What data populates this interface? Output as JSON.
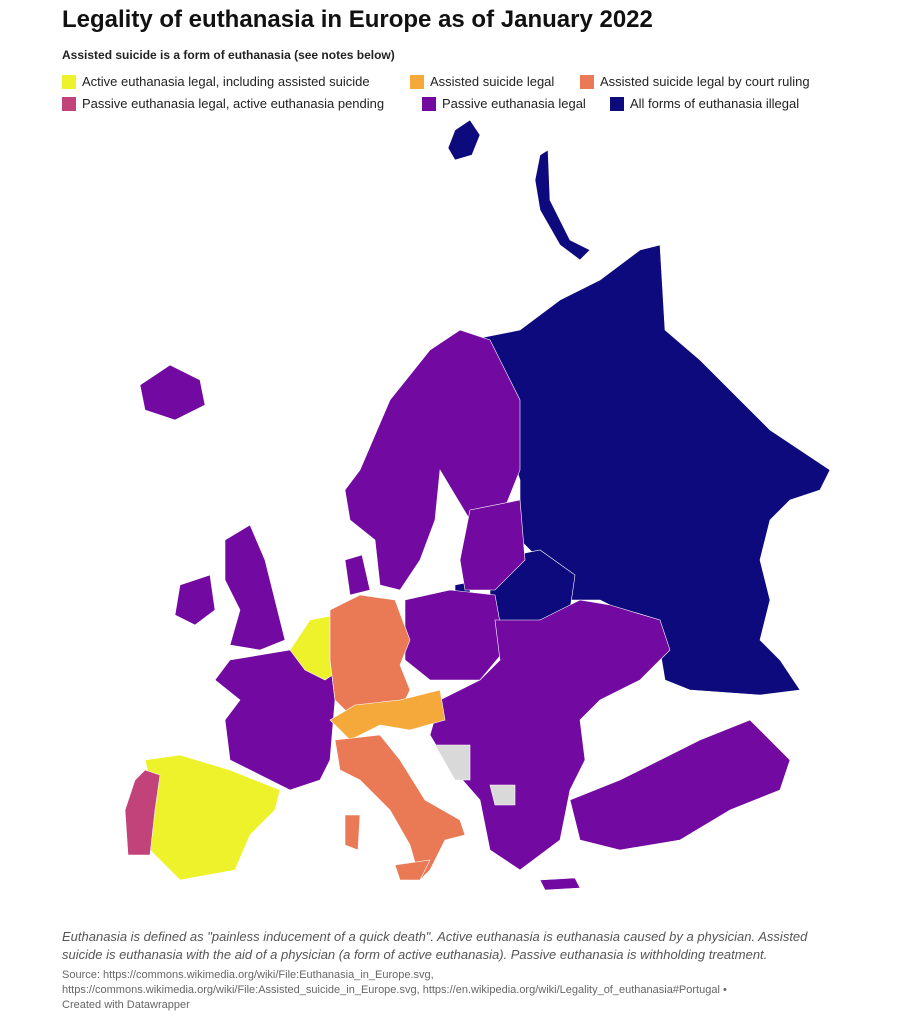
{
  "header": {
    "title": "Legality of euthanasia in Europe as of January 2022",
    "subtitle": "Assisted suicide is a form of euthanasia (see notes below)"
  },
  "legend": [
    {
      "label": "Active euthanasia legal, including assisted suicide",
      "color": "#eef22a"
    },
    {
      "label": "Assisted suicide legal",
      "color": "#f6a93b"
    },
    {
      "label": "Assisted suicide legal by court ruling",
      "color": "#ea7a56"
    },
    {
      "label": "Passive euthanasia legal, active euthanasia pending",
      "color": "#c2437a"
    },
    {
      "label": "Passive euthanasia legal",
      "color": "#7209a0"
    },
    {
      "label": "All forms of euthanasia illegal",
      "color": "#0d0a7e"
    }
  ],
  "notes": "Euthanasia is defined as \"painless inducement of a quick death\". Active euthanasia is euthanasia caused by a physician. Assisted suicide is euthanasia with the aid of a physician (a form of active euthanasia). Passive euthanasia is withholding treatment.",
  "source": [
    "Source: https://commons.wikimedia.org/wiki/File:Euthanasia_in_Europe.svg,",
    "https://commons.wikimedia.org/wiki/File:Assisted_suicide_in_Europe.svg, https://en.wikipedia.org/wiki/Legality_of_euthanasia#Portugal •",
    "Created with Datawrapper"
  ]
}
